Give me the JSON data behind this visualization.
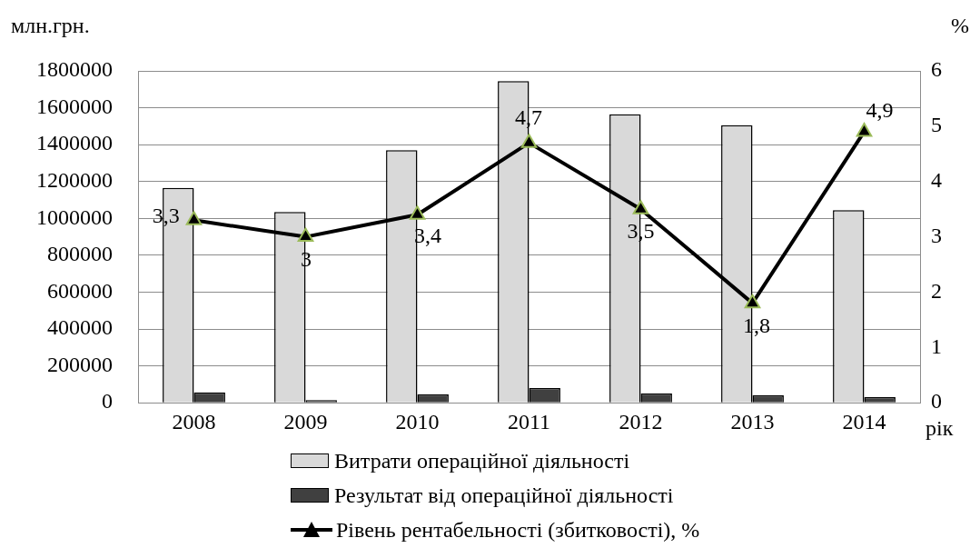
{
  "chart_data": {
    "type": "bar",
    "xlabel": "рік",
    "ylabel": "млн.грн.",
    "y2label": "%",
    "categories": [
      "2008",
      "2009",
      "2010",
      "2011",
      "2012",
      "2013",
      "2014"
    ],
    "series": [
      {
        "name": "Витрати операційної діяльності",
        "color": "#d9d9d9",
        "values": [
          1165000,
          1035000,
          1370000,
          1745000,
          1565000,
          1505000,
          1045000
        ]
      },
      {
        "name": "Результат від операційної діяльності",
        "color": "#404040",
        "values": [
          57000,
          15000,
          45000,
          80000,
          50000,
          40000,
          30000
        ]
      },
      {
        "name": "Рівень рентабельності (збитковості), %",
        "type": "line",
        "axis": "y2",
        "color": "#000000",
        "marker": "triangle",
        "values": [
          3.3,
          3,
          3.4,
          4.7,
          3.5,
          1.8,
          4.9
        ],
        "value_labels": [
          "3,3",
          "3",
          "3,4",
          "4,7",
          "3,5",
          "1,8",
          "4,9"
        ]
      }
    ],
    "ylim": [
      0,
      1800000
    ],
    "yticks": [
      0,
      200000,
      400000,
      600000,
      800000,
      1000000,
      1200000,
      1400000,
      1600000,
      1800000
    ],
    "y2lim": [
      0,
      6
    ],
    "y2ticks": [
      0,
      1,
      2,
      3,
      4,
      5,
      6
    ],
    "grid": "y",
    "legend": "bottom"
  }
}
